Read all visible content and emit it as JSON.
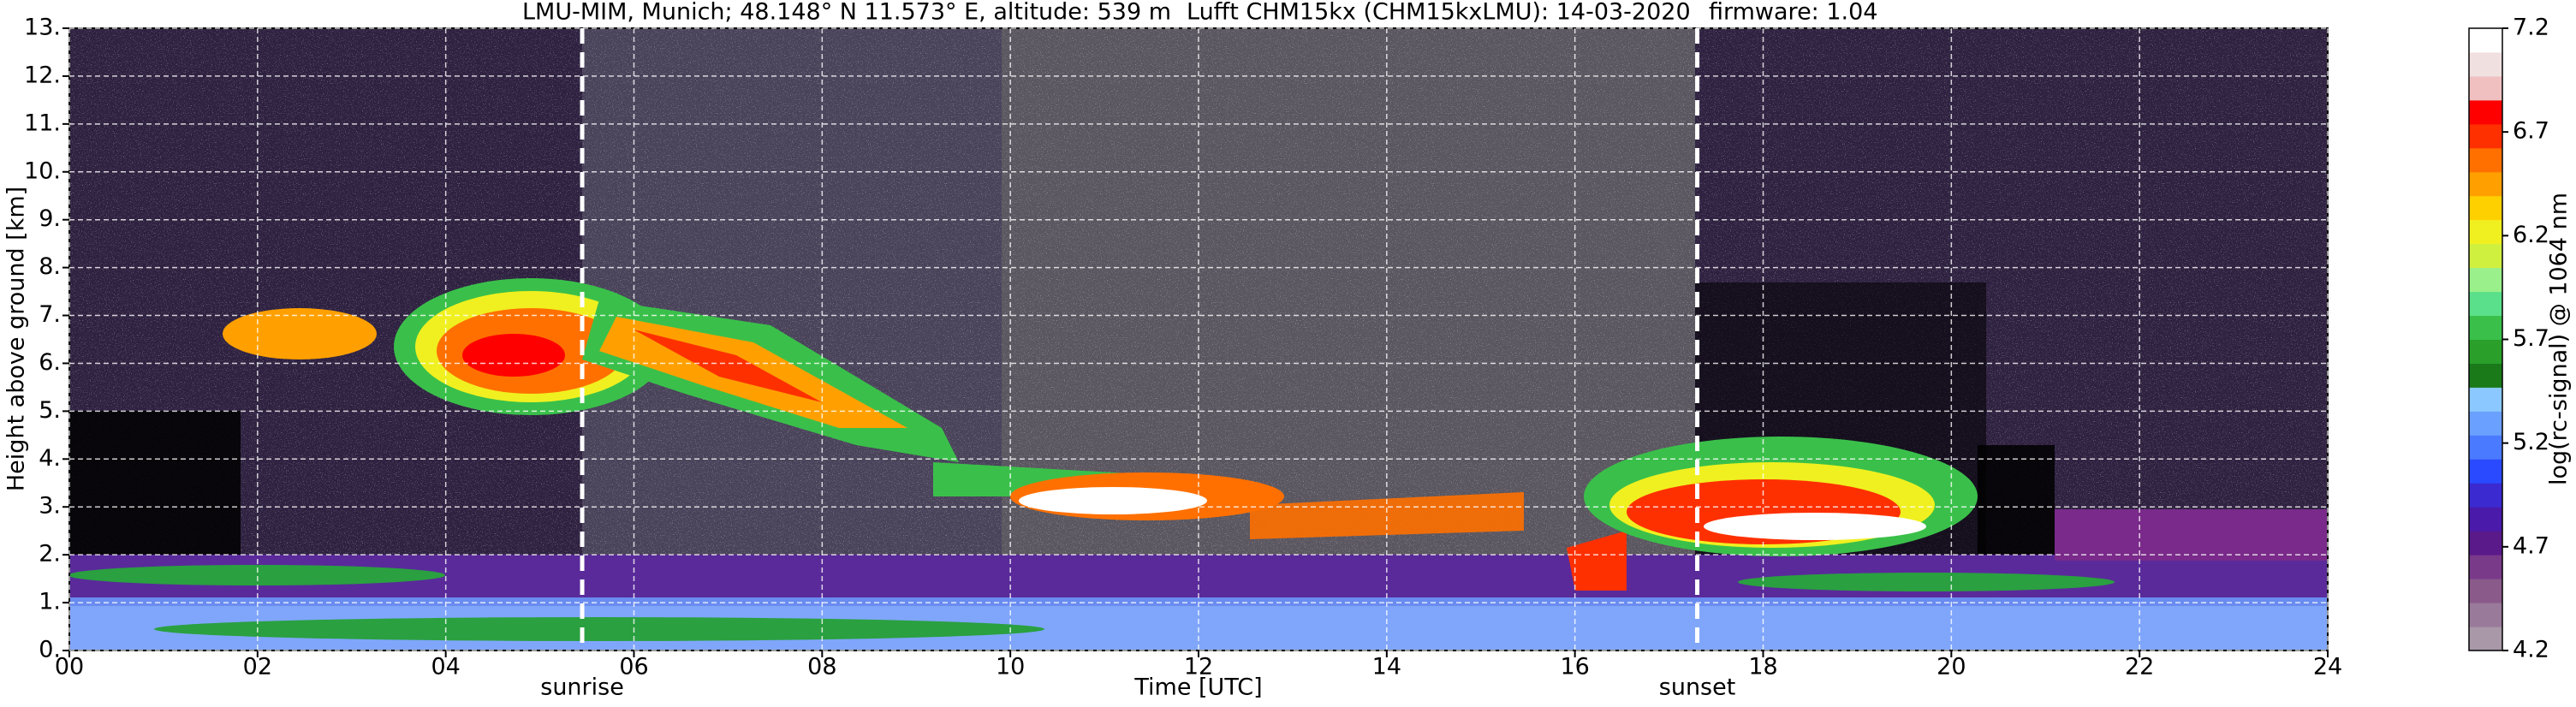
{
  "chart_data": {
    "type": "heatmap",
    "title": [
      "LMU-MIM, Munich; 48.148° N 11.573° E, altitude: 539 m",
      "Lufft CHM15kx (CHM15kxLMU): 14-03-2020",
      "firmware: 1.04"
    ],
    "x_label": "Time [UTC]",
    "y_label": "Height above ground [km]",
    "xlim": [
      0,
      24
    ],
    "xticks": [
      {
        "value": 0,
        "label": "00"
      },
      {
        "value": 2,
        "label": "02"
      },
      {
        "value": 4,
        "label": "04"
      },
      {
        "value": 6,
        "label": "06"
      },
      {
        "value": 8,
        "label": "08"
      },
      10,
      12,
      14,
      16,
      18,
      20,
      22,
      24
    ],
    "ylim": [
      0,
      13
    ],
    "yticks": [
      {
        "value": 0,
        "label": "0."
      },
      {
        "value": 1,
        "label": "1."
      },
      {
        "value": 2,
        "label": "2."
      },
      {
        "value": 3,
        "label": "3."
      },
      {
        "value": 4,
        "label": "4."
      },
      {
        "value": 5,
        "label": "5."
      },
      {
        "value": 6,
        "label": "6."
      },
      {
        "value": 7,
        "label": "7."
      },
      {
        "value": 8,
        "label": "8."
      },
      {
        "value": 9,
        "label": "9."
      },
      {
        "value": 10,
        "label": "10."
      },
      {
        "value": 11,
        "label": "11."
      },
      {
        "value": 12,
        "label": "12."
      },
      {
        "value": 13,
        "label": "13."
      }
    ],
    "grid": true,
    "annotations": [
      {
        "label": "sunrise",
        "x": 5.45
      },
      {
        "label": "sunset",
        "x": 17.3
      }
    ],
    "colorbar": {
      "label": "log(rc-signal) @ 1064 nm",
      "lim": [
        4.2,
        7.2
      ],
      "ticks": [
        4.2,
        4.7,
        5.2,
        5.7,
        6.2,
        6.7,
        7.2
      ],
      "colors": [
        "#a898a8",
        "#9a7a9a",
        "#8a5a8a",
        "#7a3a8a",
        "#5a1a8a",
        "#4a1aaa",
        "#3a2ad0",
        "#2a4aff",
        "#4a7aff",
        "#6aa0ff",
        "#8ac8ff",
        "#1a7a1a",
        "#2aa02a",
        "#3ac04a",
        "#5ae08a",
        "#9af08a",
        "#d0f040",
        "#f0f020",
        "#ffd000",
        "#ffa000",
        "#ff7000",
        "#ff3000",
        "#ff0000",
        "#f0c0c0",
        "#f0e0e0",
        "#ffffff"
      ]
    }
  }
}
